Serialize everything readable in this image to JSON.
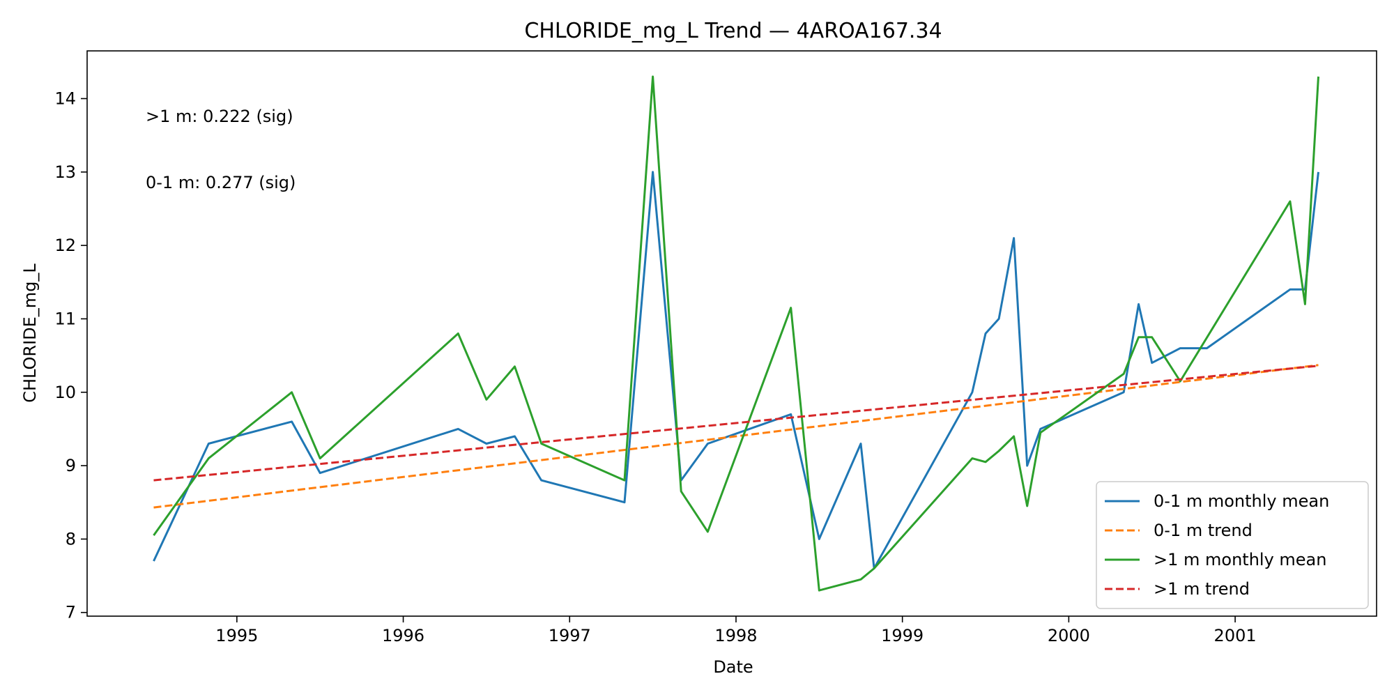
{
  "chart_data": {
    "type": "line",
    "title": "CHLORIDE_mg_L Trend — 4AROA167.34",
    "xlabel": "Date",
    "ylabel": "CHLORIDE_mg_L",
    "xlim": [
      1994.1,
      2001.85
    ],
    "ylim": [
      6.95,
      14.65
    ],
    "xticks": [
      1995,
      1996,
      1997,
      1998,
      1999,
      2000,
      2001
    ],
    "yticks": [
      7,
      8,
      9,
      10,
      11,
      12,
      13,
      14
    ],
    "grid": false,
    "legend_position": "lower right",
    "annotations": [
      ">1 m: 0.222 (sig)",
      "0-1 m: 0.277 (sig)"
    ],
    "series": [
      {
        "name": "0-1 m monthly mean",
        "color": "#1f77b4",
        "style": "solid",
        "x": [
          1994.5,
          1994.83,
          1995.33,
          1995.5,
          1996.33,
          1996.5,
          1996.67,
          1996.83,
          1997.33,
          1997.5,
          1997.67,
          1997.83,
          1998.33,
          1998.5,
          1998.75,
          1998.83,
          1999.42,
          1999.5,
          1999.58,
          1999.67,
          1999.75,
          1999.83,
          2000.33,
          2000.42,
          2000.5,
          2000.67,
          2000.83,
          2001.33,
          2001.42,
          2001.5
        ],
        "y": [
          7.7,
          9.3,
          9.6,
          8.9,
          9.5,
          9.3,
          9.4,
          8.8,
          8.5,
          13.0,
          8.8,
          9.3,
          9.7,
          8.0,
          9.3,
          7.6,
          10.0,
          10.8,
          11.0,
          12.1,
          9.0,
          9.5,
          10.0,
          11.2,
          10.4,
          10.6,
          10.6,
          11.4,
          11.4,
          13.0
        ]
      },
      {
        "name": "0-1 m trend",
        "color": "#ff7f0e",
        "style": "dashed",
        "x": [
          1994.5,
          2001.5
        ],
        "y": [
          8.43,
          10.37
        ]
      },
      {
        "name": ">1 m monthly mean",
        "color": "#2ca02c",
        "style": "solid",
        "x": [
          1994.5,
          1994.83,
          1995.33,
          1995.5,
          1996.33,
          1996.5,
          1996.67,
          1996.83,
          1997.33,
          1997.5,
          1997.67,
          1997.83,
          1998.33,
          1998.5,
          1998.75,
          1998.83,
          1999.42,
          1999.5,
          1999.58,
          1999.67,
          1999.75,
          1999.83,
          2000.33,
          2000.42,
          2000.5,
          2000.67,
          2001.33,
          2001.42,
          2001.5
        ],
        "y": [
          8.05,
          9.1,
          10.0,
          9.1,
          10.8,
          9.9,
          10.35,
          9.3,
          8.8,
          14.3,
          8.65,
          8.1,
          11.15,
          7.3,
          7.45,
          7.6,
          9.1,
          9.05,
          9.2,
          9.4,
          8.45,
          9.45,
          10.25,
          10.75,
          10.75,
          10.15,
          12.6,
          11.2,
          14.3
        ]
      },
      {
        "name": ">1 m trend",
        "color": "#d62728",
        "style": "dashed",
        "x": [
          1994.5,
          2001.5
        ],
        "y": [
          8.8,
          10.36
        ]
      }
    ]
  }
}
